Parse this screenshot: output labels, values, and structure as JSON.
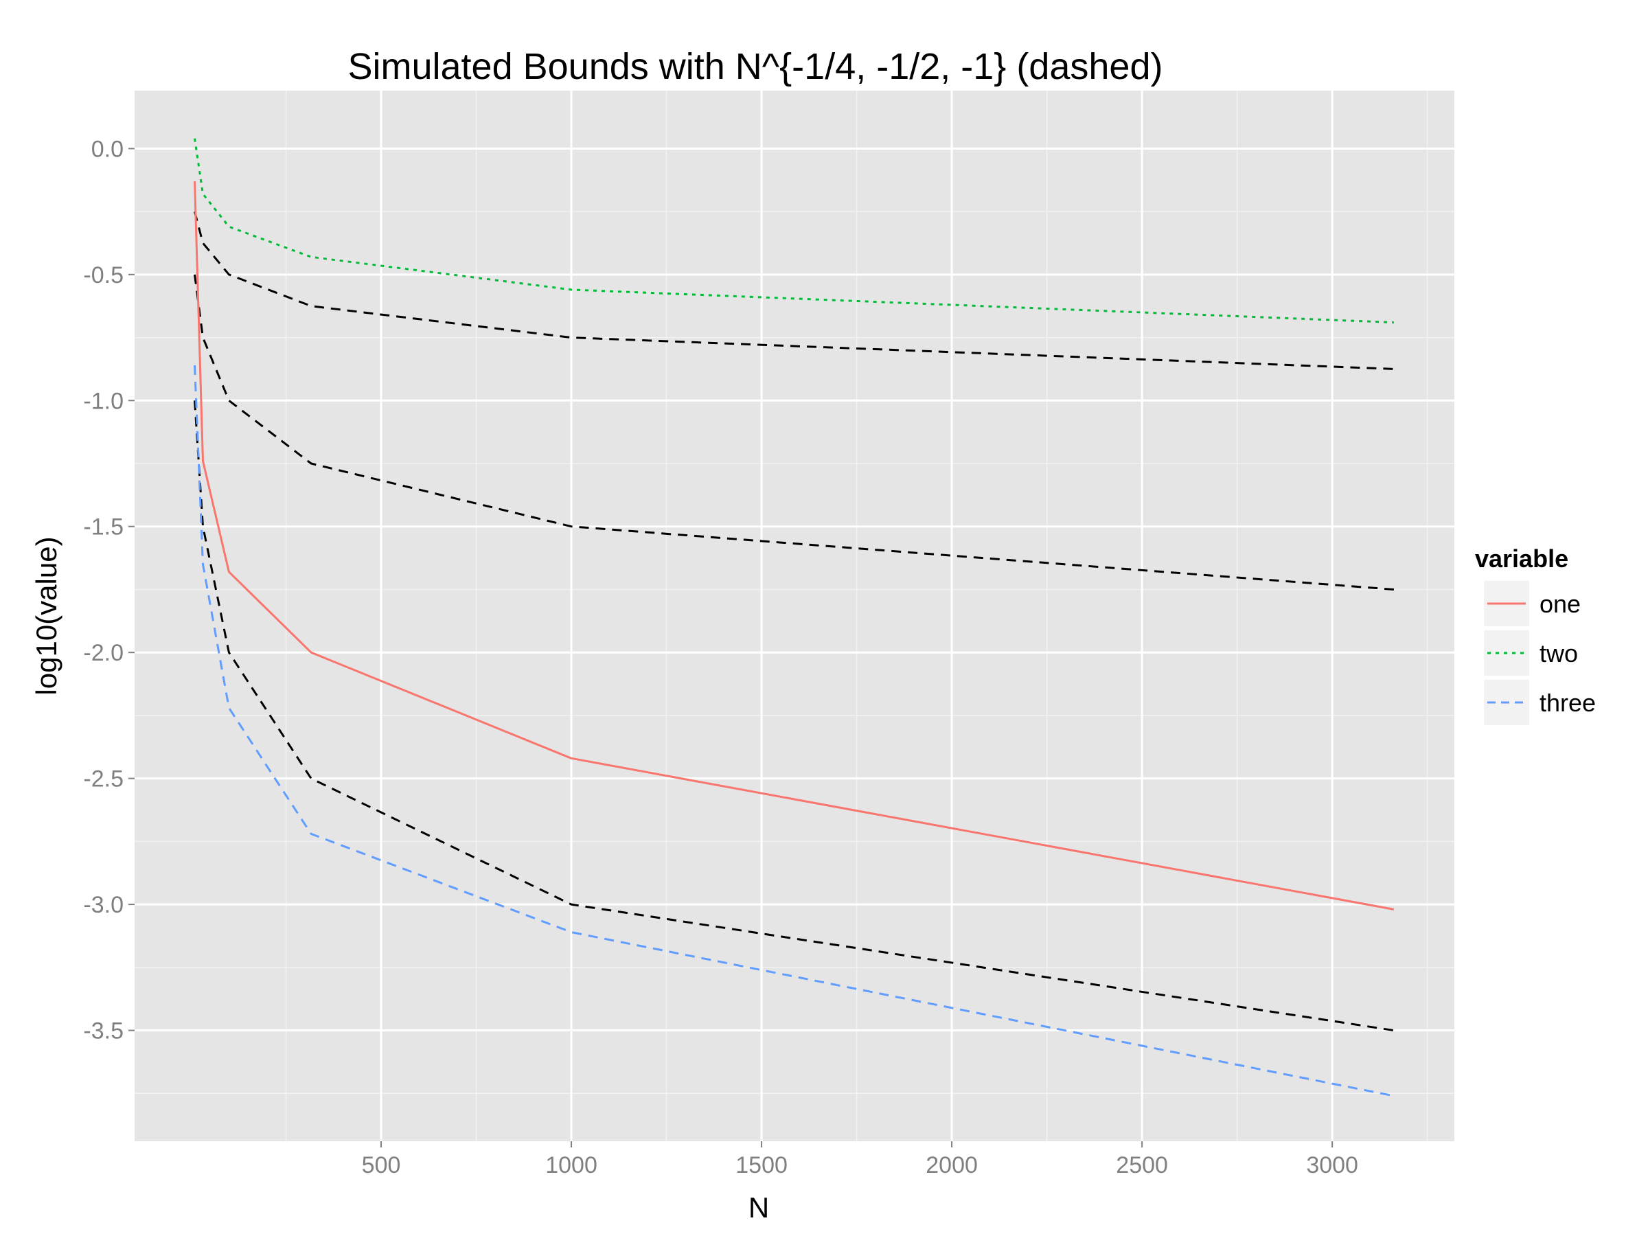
{
  "chart_data": {
    "type": "line",
    "title": "Simulated Bounds with N^{-1/4, -1/2, -1} (dashed)",
    "xlabel": "N",
    "ylabel": "log10(value)",
    "xlim": [
      -148,
      3321
    ],
    "ylim": [
      -3.94,
      0.23
    ],
    "x_ticks": [
      500,
      1000,
      1500,
      2000,
      2500,
      3000
    ],
    "x_tick_labels": [
      "500",
      "1000",
      "1500",
      "2000",
      "2500",
      "3000"
    ],
    "y_ticks": [
      0.0,
      -0.5,
      -1.0,
      -1.5,
      -2.0,
      -2.5,
      -3.0,
      -3.5
    ],
    "y_tick_labels": [
      "0.0",
      "-0.5",
      "-1.0",
      "-1.5",
      "-2.0",
      "-2.5",
      "-3.0",
      "-3.5"
    ],
    "grid": true,
    "legend": {
      "title": "variable",
      "position": "right",
      "entries": [
        "one",
        "two",
        "three"
      ]
    },
    "x": [
      10,
      31.6,
      100,
      316,
      1000,
      3162
    ],
    "series": [
      {
        "name": "one",
        "color": "#F8766D",
        "dash": "solid",
        "values": [
          -0.13,
          -1.24,
          -1.68,
          -2.0,
          -2.42,
          -3.02
        ]
      },
      {
        "name": "two",
        "color": "#00BA38",
        "dash": "dotted",
        "values": [
          0.04,
          -0.18,
          -0.31,
          -0.43,
          -0.56,
          -0.69
        ]
      },
      {
        "name": "three",
        "color": "#619CFF",
        "dash": "dashed",
        "values": [
          -0.86,
          -1.65,
          -2.22,
          -2.72,
          -3.11,
          -3.76
        ]
      }
    ],
    "reference_lines": [
      {
        "color": "#000000",
        "dash": "dashed",
        "values": [
          -0.25,
          -0.375,
          -0.5,
          -0.625,
          -0.75,
          -0.875
        ]
      },
      {
        "color": "#000000",
        "dash": "dashed",
        "values": [
          -0.5,
          -0.75,
          -1.0,
          -1.25,
          -1.5,
          -1.75
        ]
      },
      {
        "color": "#000000",
        "dash": "dashed",
        "values": [
          -1.0,
          -1.5,
          -2.0,
          -2.5,
          -3.0,
          -3.5
        ]
      }
    ]
  }
}
